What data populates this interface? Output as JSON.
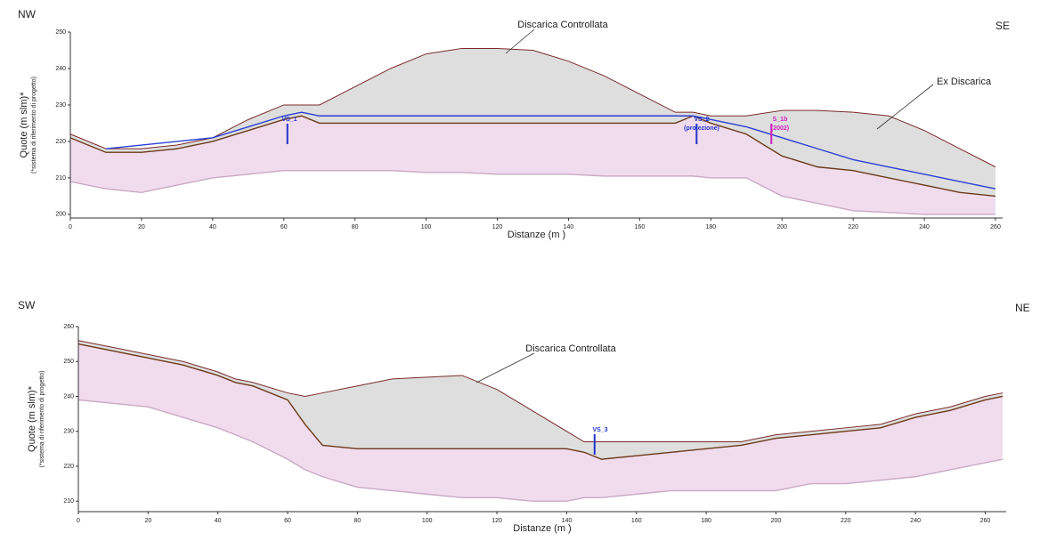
{
  "chart_data": [
    {
      "type": "profile",
      "corner_labels": [
        "NW",
        "SE"
      ],
      "annotations": [
        "Discarica Controllata",
        "Ex Discarica",
        "VS_1",
        "VS_2",
        "(proiezione)",
        "S_1b",
        "(2002)"
      ],
      "x_label": "Distanze (m )",
      "y_label": "Quote (m slm)*",
      "y_note": "(*sistema di riferimento di progetto)",
      "x": [
        0,
        10,
        20,
        30,
        40,
        50,
        60,
        65,
        70,
        80,
        90,
        100,
        110,
        120,
        130,
        140,
        150,
        160,
        170,
        175,
        180,
        190,
        200,
        210,
        220,
        230,
        240,
        250,
        260
      ],
      "series": [
        {
          "color": "#7a2a2a",
          "fill": "#dedede",
          "values": [
            222,
            218,
            218,
            219,
            221,
            226,
            230,
            230,
            230,
            235,
            240,
            244,
            245.5,
            245.5,
            245,
            242,
            238,
            233,
            228,
            228,
            227,
            227,
            228.5,
            228.5,
            228,
            227,
            223,
            218,
            213
          ]
        },
        {
          "color": "#6b3a1a",
          "fill": "#f1dcee",
          "values": [
            221,
            217,
            217,
            218,
            220,
            223,
            226,
            227,
            225,
            225,
            225,
            225,
            225,
            225,
            225,
            225,
            225,
            225,
            225,
            227,
            225,
            222,
            216,
            213,
            212,
            210,
            208,
            206,
            205
          ]
        },
        {
          "color": "#c9a9c4",
          "values": [
            209,
            207,
            206,
            208,
            210,
            211,
            212,
            212,
            212,
            212,
            212,
            211.5,
            211.5,
            211,
            211,
            211,
            210.5,
            210.5,
            210.5,
            210.5,
            210,
            210,
            205,
            203,
            201,
            200.5,
            200,
            200,
            200
          ]
        },
        {
          "color": "#2b3fd6",
          "values": [
            null,
            218,
            219,
            220,
            221,
            224,
            227,
            228,
            227,
            227,
            227,
            227,
            227,
            227,
            227,
            227,
            227,
            227,
            227,
            227,
            226,
            224,
            221,
            218,
            215,
            213,
            211,
            209,
            207
          ]
        }
      ],
      "xlim": [
        0,
        262
      ],
      "ylim": [
        199,
        250
      ],
      "xticks": [
        0,
        20,
        40,
        60,
        80,
        100,
        120,
        140,
        160,
        180,
        200,
        220,
        240,
        260
      ],
      "yticks": [
        200,
        210,
        220,
        230,
        240,
        250
      ]
    },
    {
      "type": "profile",
      "corner_labels": [
        "SW",
        "NE"
      ],
      "annotations": [
        "Discarica Controllata",
        "VS_3"
      ],
      "x_label": "Distanze (m )",
      "y_label": "Quote (m slm)*",
      "y_note": "(*sistema di riferimento di progetto)",
      "x": [
        0,
        10,
        20,
        30,
        40,
        45,
        50,
        60,
        65,
        70,
        80,
        90,
        100,
        110,
        120,
        130,
        140,
        145,
        150,
        160,
        170,
        180,
        190,
        200,
        210,
        220,
        230,
        240,
        250,
        260,
        265
      ],
      "series": [
        {
          "color": "#7a2a2a",
          "fill": "#dedede",
          "values": [
            256,
            254,
            252,
            250,
            247,
            245,
            244,
            241,
            240,
            241,
            243,
            245,
            245.5,
            246,
            242,
            236,
            230,
            227,
            227,
            227,
            227,
            227,
            227,
            229,
            230,
            231,
            232,
            235,
            237,
            240,
            241
          ]
        },
        {
          "color": "#6b3a1a",
          "fill": "#f1dcee",
          "values": [
            255,
            253,
            251,
            249,
            246,
            244,
            243,
            239,
            232,
            226,
            225,
            225,
            225,
            225,
            225,
            225,
            225,
            224,
            222,
            223,
            224,
            225,
            226,
            228,
            229,
            230,
            231,
            234,
            236,
            239,
            240
          ]
        },
        {
          "color": "#c9a9c4",
          "values": [
            239,
            238,
            237,
            234,
            231,
            229,
            227,
            222,
            219,
            217,
            214,
            213,
            212,
            211,
            211,
            210,
            210,
            211,
            211,
            212,
            213,
            213,
            213,
            213,
            215,
            215,
            216,
            217,
            219,
            221,
            222
          ]
        }
      ],
      "xlim": [
        0,
        266
      ],
      "ylim": [
        207,
        260
      ],
      "xticks": [
        0,
        20,
        40,
        60,
        80,
        100,
        120,
        140,
        160,
        180,
        200,
        220,
        240,
        260
      ],
      "yticks": [
        210,
        220,
        230,
        240,
        250,
        260
      ]
    }
  ]
}
